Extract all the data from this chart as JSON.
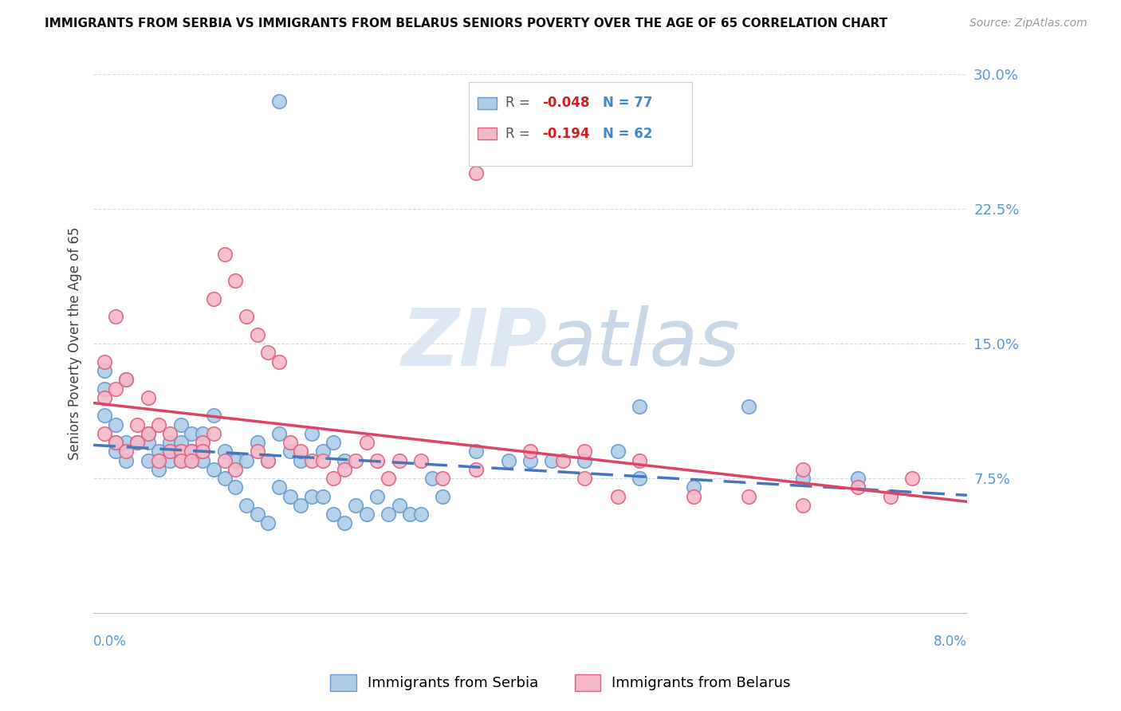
{
  "title": "IMMIGRANTS FROM SERBIA VS IMMIGRANTS FROM BELARUS SENIORS POVERTY OVER THE AGE OF 65 CORRELATION CHART",
  "source": "Source: ZipAtlas.com",
  "ylabel": "Seniors Poverty Over the Age of 65",
  "serbia_R": -0.048,
  "serbia_N": 77,
  "belarus_R": -0.194,
  "belarus_N": 62,
  "serbia_color": "#aecce8",
  "serbia_edge": "#6699cc",
  "belarus_color": "#f4b8c8",
  "belarus_edge": "#e06080",
  "serbia_line_color": "#4477bb",
  "belarus_line_color": "#dd4466",
  "watermark_color": "#dce8f4",
  "xlim": [
    0,
    0.08
  ],
  "ylim": [
    0,
    0.3
  ],
  "y_ticks": [
    0.075,
    0.15,
    0.225,
    0.3
  ],
  "y_tick_labels": [
    "7.5%",
    "15.0%",
    "22.5%",
    "30.0%"
  ],
  "tick_color": "#5599dd",
  "serbia_scatter_x": [
    0.003,
    0.005,
    0.006,
    0.007,
    0.008,
    0.009,
    0.01,
    0.011,
    0.012,
    0.013,
    0.014,
    0.015,
    0.016,
    0.017,
    0.018,
    0.019,
    0.02,
    0.021,
    0.022,
    0.023,
    0.001,
    0.001,
    0.001,
    0.002,
    0.002,
    0.002,
    0.003,
    0.003,
    0.004,
    0.004,
    0.005,
    0.005,
    0.006,
    0.006,
    0.007,
    0.007,
    0.008,
    0.008,
    0.009,
    0.009,
    0.01,
    0.01,
    0.011,
    0.012,
    0.013,
    0.014,
    0.015,
    0.016,
    0.017,
    0.018,
    0.019,
    0.02,
    0.021,
    0.022,
    0.023,
    0.024,
    0.025,
    0.026,
    0.027,
    0.028,
    0.029,
    0.03,
    0.031,
    0.032,
    0.035,
    0.038,
    0.04,
    0.042,
    0.045,
    0.048,
    0.05,
    0.055,
    0.06,
    0.065,
    0.07,
    0.017,
    0.05
  ],
  "serbia_scatter_y": [
    0.095,
    0.1,
    0.085,
    0.09,
    0.105,
    0.1,
    0.1,
    0.11,
    0.09,
    0.085,
    0.085,
    0.095,
    0.085,
    0.1,
    0.09,
    0.085,
    0.1,
    0.09,
    0.095,
    0.085,
    0.135,
    0.125,
    0.11,
    0.09,
    0.105,
    0.095,
    0.13,
    0.085,
    0.095,
    0.095,
    0.085,
    0.095,
    0.08,
    0.09,
    0.085,
    0.095,
    0.095,
    0.085,
    0.085,
    0.09,
    0.085,
    0.09,
    0.08,
    0.075,
    0.07,
    0.06,
    0.055,
    0.05,
    0.07,
    0.065,
    0.06,
    0.065,
    0.065,
    0.055,
    0.05,
    0.06,
    0.055,
    0.065,
    0.055,
    0.06,
    0.055,
    0.055,
    0.075,
    0.065,
    0.09,
    0.085,
    0.085,
    0.085,
    0.085,
    0.09,
    0.075,
    0.07,
    0.115,
    0.075,
    0.075,
    0.285,
    0.115
  ],
  "belarus_scatter_x": [
    0.001,
    0.001,
    0.001,
    0.002,
    0.002,
    0.002,
    0.003,
    0.003,
    0.004,
    0.004,
    0.005,
    0.005,
    0.006,
    0.006,
    0.007,
    0.007,
    0.008,
    0.008,
    0.009,
    0.009,
    0.01,
    0.01,
    0.011,
    0.011,
    0.012,
    0.012,
    0.013,
    0.013,
    0.014,
    0.015,
    0.015,
    0.016,
    0.016,
    0.017,
    0.018,
    0.019,
    0.02,
    0.021,
    0.022,
    0.023,
    0.024,
    0.025,
    0.026,
    0.027,
    0.028,
    0.03,
    0.032,
    0.035,
    0.04,
    0.043,
    0.045,
    0.048,
    0.05,
    0.055,
    0.06,
    0.065,
    0.07,
    0.073,
    0.035,
    0.045,
    0.065,
    0.075
  ],
  "belarus_scatter_y": [
    0.14,
    0.12,
    0.1,
    0.165,
    0.125,
    0.095,
    0.13,
    0.09,
    0.105,
    0.095,
    0.12,
    0.1,
    0.105,
    0.085,
    0.1,
    0.09,
    0.09,
    0.085,
    0.09,
    0.085,
    0.095,
    0.09,
    0.175,
    0.1,
    0.2,
    0.085,
    0.185,
    0.08,
    0.165,
    0.155,
    0.09,
    0.145,
    0.085,
    0.14,
    0.095,
    0.09,
    0.085,
    0.085,
    0.075,
    0.08,
    0.085,
    0.095,
    0.085,
    0.075,
    0.085,
    0.085,
    0.075,
    0.08,
    0.09,
    0.085,
    0.075,
    0.065,
    0.085,
    0.065,
    0.065,
    0.06,
    0.07,
    0.065,
    0.245,
    0.09,
    0.08,
    0.075
  ]
}
